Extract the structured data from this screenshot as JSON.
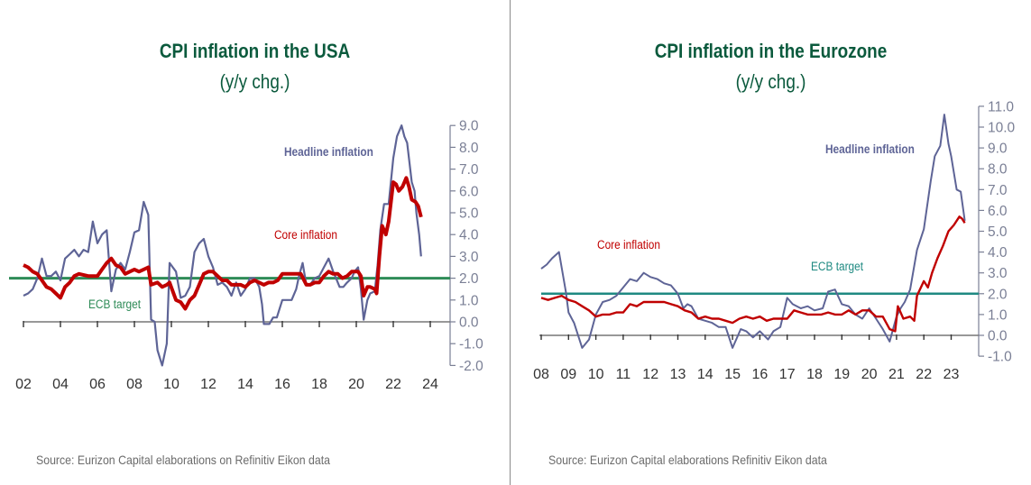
{
  "colors": {
    "title": "#0b5a3d",
    "headline": "#5e6496",
    "core": "#c00000",
    "target_us": "#2e8b57",
    "target_ez": "#1f8a82",
    "axis": "#7a7f95",
    "source": "#6b6b6b"
  },
  "chart_data": [
    {
      "type": "line",
      "title": "CPI inflation in the USA",
      "subtitle": "(y/y chg.)",
      "source": "Source: Eurizon Capital elaborations on Refinitiv Eikon data",
      "xlabel": "",
      "ylabel": "",
      "xlim": [
        2002,
        2024
      ],
      "ylim": [
        -2,
        9
      ],
      "yticks": [
        "9.0",
        "8.0",
        "7.0",
        "6.0",
        "5.0",
        "4.0",
        "3.0",
        "2.0",
        "1.0",
        "0.0",
        "-1.0",
        "-2.0"
      ],
      "ytick_values": [
        9,
        8,
        7,
        6,
        5,
        4,
        3,
        2,
        1,
        0,
        -1,
        -2
      ],
      "xticks": [
        "02",
        "04",
        "06",
        "08",
        "10",
        "12",
        "14",
        "16",
        "18",
        "20",
        "22",
        "24"
      ],
      "xtick_values": [
        2002,
        2004,
        2006,
        2008,
        2010,
        2012,
        2014,
        2016,
        2018,
        2020,
        2022,
        2024
      ],
      "axis_position": "right",
      "grid": false,
      "target": {
        "name": "ECB target",
        "value": 2.0
      },
      "annotations": [
        {
          "text": "Headline inflation",
          "series": "Headline inflation"
        },
        {
          "text": "Core inflation",
          "series": "Core inflation"
        },
        {
          "text": "ECB target",
          "series": "target"
        }
      ],
      "series": [
        {
          "name": "Headline inflation",
          "x": [
            2002.0,
            2002.25,
            2002.5,
            2002.75,
            2003.0,
            2003.25,
            2003.5,
            2003.75,
            2004.0,
            2004.25,
            2004.5,
            2004.75,
            2005.0,
            2005.25,
            2005.5,
            2005.75,
            2006.0,
            2006.25,
            2006.5,
            2006.75,
            2007.0,
            2007.25,
            2007.5,
            2007.75,
            2008.0,
            2008.25,
            2008.5,
            2008.75,
            2008.9,
            2009.1,
            2009.25,
            2009.5,
            2009.75,
            2009.9,
            2010.25,
            2010.5,
            2010.75,
            2011.0,
            2011.25,
            2011.5,
            2011.75,
            2012.0,
            2012.25,
            2012.5,
            2012.75,
            2013.0,
            2013.25,
            2013.5,
            2013.75,
            2014.0,
            2014.25,
            2014.5,
            2014.75,
            2014.9,
            2015.0,
            2015.3,
            2015.5,
            2015.7,
            2016.0,
            2016.25,
            2016.5,
            2016.75,
            2016.9,
            2017.1,
            2017.3,
            2017.5,
            2017.75,
            2018.0,
            2018.25,
            2018.5,
            2018.75,
            2018.9,
            2019.1,
            2019.3,
            2019.5,
            2019.75,
            2019.9,
            2020.1,
            2020.25,
            2020.4,
            2020.6,
            2020.75,
            2021.0,
            2021.15,
            2021.3,
            2021.5,
            2021.75,
            2022.0,
            2022.2,
            2022.45,
            2022.6,
            2022.75,
            2023.0,
            2023.15,
            2023.25,
            2023.4,
            2023.5
          ],
          "y": [
            1.2,
            1.3,
            1.5,
            2.0,
            2.9,
            2.1,
            2.1,
            2.3,
            1.9,
            2.9,
            3.1,
            3.3,
            3.0,
            3.3,
            3.2,
            4.6,
            3.6,
            4.0,
            4.2,
            1.4,
            2.4,
            2.7,
            2.4,
            3.2,
            4.1,
            4.2,
            5.5,
            4.9,
            0.1,
            0.0,
            -1.3,
            -2.0,
            -1.0,
            2.7,
            2.3,
            1.1,
            1.2,
            1.6,
            3.2,
            3.6,
            3.8,
            3.0,
            2.5,
            1.7,
            1.8,
            1.6,
            1.2,
            1.8,
            1.2,
            1.5,
            2.0,
            2.0,
            1.6,
            0.8,
            -0.1,
            -0.1,
            0.2,
            0.2,
            1.0,
            1.0,
            1.0,
            1.5,
            2.1,
            2.7,
            1.7,
            1.7,
            2.0,
            2.1,
            2.5,
            2.9,
            2.3,
            2.0,
            1.6,
            1.6,
            1.8,
            2.0,
            2.3,
            2.5,
            1.5,
            0.1,
            1.0,
            1.3,
            1.4,
            2.6,
            4.2,
            5.4,
            5.4,
            7.5,
            8.5,
            9.0,
            8.5,
            8.2,
            6.4,
            6.0,
            5.0,
            4.0,
            3.0
          ]
        },
        {
          "name": "Core inflation",
          "x": [
            2002.0,
            2002.25,
            2002.5,
            2002.75,
            2003.0,
            2003.25,
            2003.5,
            2003.75,
            2004.0,
            2004.25,
            2004.5,
            2004.75,
            2005.0,
            2005.5,
            2006.0,
            2006.25,
            2006.5,
            2006.75,
            2007.0,
            2007.25,
            2007.5,
            2007.75,
            2008.0,
            2008.25,
            2008.5,
            2008.75,
            2008.9,
            2009.25,
            2009.5,
            2009.75,
            2009.9,
            2010.25,
            2010.5,
            2010.75,
            2011.0,
            2011.25,
            2011.5,
            2011.75,
            2012.0,
            2012.25,
            2012.5,
            2012.75,
            2013.0,
            2013.25,
            2013.5,
            2013.75,
            2014.0,
            2014.25,
            2014.5,
            2014.75,
            2015.0,
            2015.25,
            2015.5,
            2015.75,
            2016.0,
            2016.25,
            2016.5,
            2016.75,
            2017.0,
            2017.3,
            2017.5,
            2017.75,
            2018.0,
            2018.25,
            2018.5,
            2018.75,
            2019.0,
            2019.25,
            2019.5,
            2019.75,
            2020.1,
            2020.25,
            2020.4,
            2020.6,
            2020.75,
            2021.0,
            2021.1,
            2021.25,
            2021.4,
            2021.6,
            2021.75,
            2022.0,
            2022.15,
            2022.3,
            2022.5,
            2022.7,
            2022.85,
            2023.0,
            2023.2,
            2023.35,
            2023.5
          ],
          "y": [
            2.6,
            2.5,
            2.3,
            2.2,
            1.9,
            1.6,
            1.5,
            1.3,
            1.1,
            1.6,
            1.8,
            2.1,
            2.2,
            2.1,
            2.1,
            2.4,
            2.7,
            2.9,
            2.6,
            2.5,
            2.2,
            2.3,
            2.4,
            2.3,
            2.4,
            2.5,
            1.7,
            1.8,
            1.6,
            1.7,
            1.8,
            1.0,
            0.9,
            0.6,
            1.0,
            1.2,
            1.7,
            2.2,
            2.3,
            2.3,
            2.1,
            1.9,
            1.9,
            1.7,
            1.7,
            1.7,
            1.6,
            1.8,
            1.9,
            1.8,
            1.7,
            1.8,
            1.8,
            1.9,
            2.2,
            2.2,
            2.2,
            2.2,
            2.2,
            1.7,
            1.7,
            1.8,
            1.8,
            2.1,
            2.3,
            2.2,
            2.2,
            2.0,
            2.1,
            2.3,
            2.3,
            2.1,
            1.2,
            1.6,
            1.6,
            1.5,
            1.3,
            3.0,
            4.4,
            4.0,
            4.6,
            6.4,
            6.3,
            6.0,
            6.2,
            6.6,
            6.2,
            5.6,
            5.5,
            5.3,
            4.8
          ]
        }
      ]
    },
    {
      "type": "line",
      "title": "CPI inflation in the Eurozone",
      "subtitle": "(y/y chg.)",
      "source": "Source: Eurizon Capital elaborations Refinitiv  Eikon data",
      "xlabel": "",
      "ylabel": "",
      "xlim": [
        2008,
        2024
      ],
      "ylim": [
        -1,
        11
      ],
      "yticks": [
        "11.0",
        "10.0",
        "9.0",
        "8.0",
        "7.0",
        "6.0",
        "5.0",
        "4.0",
        "3.0",
        "2.0",
        "1.0",
        "0.0",
        "-1.0"
      ],
      "ytick_values": [
        11,
        10,
        9,
        8,
        7,
        6,
        5,
        4,
        3,
        2,
        1,
        0,
        -1
      ],
      "xticks": [
        "08",
        "09",
        "10",
        "11",
        "12",
        "13",
        "14",
        "15",
        "16",
        "17",
        "18",
        "19",
        "20",
        "21",
        "22",
        "23"
      ],
      "xtick_values": [
        2008,
        2009,
        2010,
        2011,
        2012,
        2013,
        2014,
        2015,
        2016,
        2017,
        2018,
        2019,
        2020,
        2021,
        2022,
        2023
      ],
      "axis_position": "right",
      "grid": false,
      "target": {
        "name": "ECB target",
        "value": 2.0
      },
      "annotations": [
        {
          "text": "Headline inflation",
          "series": "Headline inflation"
        },
        {
          "text": "Core inflation",
          "series": "Core inflation"
        },
        {
          "text": "ECB target",
          "series": "target"
        }
      ],
      "series": [
        {
          "name": "Headline inflation",
          "x": [
            2008.0,
            2008.2,
            2008.4,
            2008.65,
            2008.9,
            2009.0,
            2009.2,
            2009.5,
            2009.75,
            2010.0,
            2010.25,
            2010.5,
            2010.75,
            2011.0,
            2011.25,
            2011.5,
            2011.75,
            2012.0,
            2012.25,
            2012.5,
            2012.75,
            2013.0,
            2013.2,
            2013.35,
            2013.5,
            2013.75,
            2014.0,
            2014.25,
            2014.5,
            2014.75,
            2015.0,
            2015.3,
            2015.5,
            2015.75,
            2016.0,
            2016.3,
            2016.5,
            2016.75,
            2017.0,
            2017.2,
            2017.5,
            2017.75,
            2018.0,
            2018.3,
            2018.5,
            2018.75,
            2019.0,
            2019.25,
            2019.5,
            2019.75,
            2020.0,
            2020.25,
            2020.5,
            2020.75,
            2021.0,
            2021.15,
            2021.3,
            2021.5,
            2021.75,
            2022.0,
            2022.25,
            2022.4,
            2022.6,
            2022.75,
            2022.9,
            2023.0,
            2023.2,
            2023.35,
            2023.5
          ],
          "y": [
            3.2,
            3.4,
            3.7,
            4.0,
            2.1,
            1.1,
            0.6,
            -0.6,
            -0.2,
            1.0,
            1.6,
            1.7,
            1.9,
            2.3,
            2.7,
            2.6,
            3.0,
            2.8,
            2.7,
            2.5,
            2.4,
            2.0,
            1.3,
            1.5,
            1.4,
            0.8,
            0.7,
            0.6,
            0.4,
            0.4,
            -0.6,
            0.3,
            0.2,
            -0.1,
            0.2,
            -0.2,
            0.2,
            0.4,
            1.8,
            1.5,
            1.3,
            1.4,
            1.2,
            1.3,
            2.1,
            2.2,
            1.5,
            1.4,
            1.0,
            0.8,
            1.3,
            0.8,
            0.3,
            -0.3,
            0.9,
            1.3,
            1.6,
            2.2,
            4.1,
            5.1,
            7.4,
            8.6,
            9.1,
            10.6,
            9.2,
            8.6,
            7.0,
            6.9,
            5.5
          ]
        },
        {
          "name": "Core inflation",
          "x": [
            2008.0,
            2008.25,
            2008.5,
            2008.75,
            2009.0,
            2009.25,
            2009.5,
            2009.75,
            2010.0,
            2010.25,
            2010.5,
            2010.75,
            2011.0,
            2011.25,
            2011.5,
            2011.75,
            2012.0,
            2012.25,
            2012.5,
            2012.75,
            2013.0,
            2013.25,
            2013.5,
            2013.75,
            2014.0,
            2014.25,
            2014.5,
            2014.75,
            2015.0,
            2015.25,
            2015.5,
            2015.75,
            2016.0,
            2016.25,
            2016.5,
            2016.75,
            2017.0,
            2017.25,
            2017.5,
            2017.75,
            2018.0,
            2018.25,
            2018.5,
            2018.75,
            2019.0,
            2019.25,
            2019.5,
            2019.75,
            2020.0,
            2020.25,
            2020.5,
            2020.75,
            2020.95,
            2021.05,
            2021.25,
            2021.5,
            2021.65,
            2021.75,
            2022.0,
            2022.15,
            2022.3,
            2022.5,
            2022.7,
            2022.9,
            2023.1,
            2023.3,
            2023.4,
            2023.5
          ],
          "y": [
            1.8,
            1.7,
            1.8,
            1.9,
            1.7,
            1.6,
            1.4,
            1.2,
            0.9,
            1.0,
            1.0,
            1.1,
            1.1,
            1.5,
            1.4,
            1.6,
            1.6,
            1.6,
            1.6,
            1.5,
            1.4,
            1.2,
            1.1,
            0.8,
            0.9,
            0.8,
            0.8,
            0.7,
            0.6,
            0.8,
            0.9,
            0.8,
            0.9,
            0.7,
            0.8,
            0.8,
            0.8,
            1.2,
            1.1,
            1.0,
            1.0,
            1.0,
            1.1,
            1.0,
            1.0,
            1.2,
            1.0,
            1.2,
            1.2,
            0.9,
            0.9,
            0.3,
            0.2,
            1.4,
            0.8,
            0.9,
            0.7,
            1.9,
            2.6,
            2.3,
            3.0,
            3.7,
            4.3,
            5.0,
            5.3,
            5.7,
            5.6,
            5.4
          ]
        }
      ]
    }
  ]
}
